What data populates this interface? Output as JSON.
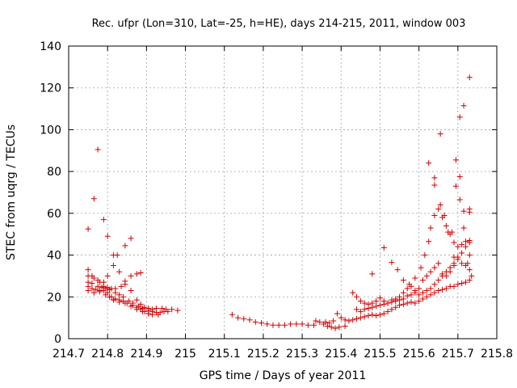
{
  "chart_data": {
    "type": "scatter",
    "title": "Rec. ufpr (Lon=310, Lat=-25, h=HE), days 214-215, 2011, window 003",
    "xlabel": "GPS time / Days of year 2011",
    "ylabel": "STEC from uqrg / TECUs",
    "xlim": [
      214.7,
      215.8
    ],
    "ylim": [
      0,
      140
    ],
    "x_ticks": [
      "214.7",
      "214.8",
      "214.9",
      "215",
      "215.1",
      "215.2",
      "215.3",
      "215.4",
      "215.5",
      "215.6",
      "215.7",
      "215.8"
    ],
    "y_ticks": [
      "0",
      "20",
      "40",
      "60",
      "80",
      "100",
      "120",
      "140"
    ],
    "grid": true,
    "marker": "plus",
    "color": "#d00000",
    "points": [
      [
        214.75,
        52.5
      ],
      [
        214.765,
        67
      ],
      [
        214.775,
        90.5
      ],
      [
        214.79,
        57
      ],
      [
        214.8,
        49
      ],
      [
        214.815,
        40
      ],
      [
        214.825,
        40
      ],
      [
        214.845,
        44.5
      ],
      [
        214.86,
        48
      ],
      [
        214.75,
        33
      ],
      [
        214.76,
        30
      ],
      [
        214.775,
        28
      ],
      [
        214.79,
        27
      ],
      [
        214.8,
        30
      ],
      [
        214.815,
        35
      ],
      [
        214.83,
        32
      ],
      [
        214.845,
        27.5
      ],
      [
        214.86,
        30
      ],
      [
        214.875,
        31
      ],
      [
        214.885,
        31.5
      ],
      [
        214.75,
        30
      ],
      [
        214.765,
        29
      ],
      [
        214.78,
        27
      ],
      [
        214.79,
        25
      ],
      [
        214.8,
        24.5
      ],
      [
        214.81,
        24
      ],
      [
        214.82,
        24
      ],
      [
        214.835,
        25
      ],
      [
        214.845,
        26
      ],
      [
        214.86,
        23
      ],
      [
        214.875,
        18.5
      ],
      [
        214.885,
        16.5
      ],
      [
        214.895,
        15
      ],
      [
        214.905,
        14.5
      ],
      [
        214.915,
        14
      ],
      [
        214.925,
        14.5
      ],
      [
        214.94,
        14.5
      ],
      [
        214.95,
        14
      ],
      [
        214.965,
        14
      ],
      [
        214.98,
        13.5
      ],
      [
        214.75,
        27
      ],
      [
        214.76,
        26.5
      ],
      [
        214.775,
        25
      ],
      [
        214.785,
        24.5
      ],
      [
        214.795,
        24
      ],
      [
        214.805,
        23.5
      ],
      [
        214.82,
        22
      ],
      [
        214.83,
        21
      ],
      [
        214.84,
        20
      ],
      [
        214.855,
        18
      ],
      [
        214.865,
        17
      ],
      [
        214.88,
        15.5
      ],
      [
        214.89,
        14.5
      ],
      [
        214.905,
        13.5
      ],
      [
        214.915,
        13
      ],
      [
        214.925,
        12.5
      ],
      [
        214.935,
        12.5
      ],
      [
        214.945,
        13
      ],
      [
        214.955,
        13
      ],
      [
        214.75,
        25
      ],
      [
        214.76,
        24
      ],
      [
        214.77,
        23.5
      ],
      [
        214.78,
        23
      ],
      [
        214.79,
        23
      ],
      [
        214.8,
        22
      ],
      [
        214.81,
        20
      ],
      [
        214.82,
        19
      ],
      [
        214.83,
        18.5
      ],
      [
        214.84,
        18
      ],
      [
        214.85,
        17
      ],
      [
        214.865,
        16
      ],
      [
        214.875,
        15
      ],
      [
        214.885,
        14
      ],
      [
        214.895,
        13
      ],
      [
        214.905,
        12
      ],
      [
        214.915,
        11.5
      ],
      [
        214.93,
        11.5
      ],
      [
        214.75,
        23
      ],
      [
        214.765,
        22
      ],
      [
        214.78,
        22.5
      ],
      [
        214.795,
        21
      ],
      [
        214.805,
        20
      ],
      [
        214.815,
        18.5
      ],
      [
        214.83,
        17.5
      ],
      [
        214.845,
        17
      ],
      [
        214.86,
        15.5
      ],
      [
        214.875,
        14
      ],
      [
        214.89,
        13
      ],
      [
        214.905,
        12
      ],
      [
        215.12,
        11.5
      ],
      [
        215.135,
        10
      ],
      [
        215.15,
        9.5
      ],
      [
        215.165,
        9
      ],
      [
        215.18,
        8
      ],
      [
        215.195,
        7.5
      ],
      [
        215.21,
        7
      ],
      [
        215.225,
        6.5
      ],
      [
        215.24,
        6.5
      ],
      [
        215.255,
        6.5
      ],
      [
        215.27,
        7
      ],
      [
        215.285,
        7
      ],
      [
        215.3,
        7
      ],
      [
        215.315,
        6.5
      ],
      [
        215.33,
        6.5
      ],
      [
        215.335,
        8.5
      ],
      [
        215.345,
        8
      ],
      [
        215.355,
        7
      ],
      [
        215.365,
        6
      ],
      [
        215.375,
        5.5
      ],
      [
        215.385,
        5
      ],
      [
        215.395,
        5.5
      ],
      [
        215.41,
        6
      ],
      [
        215.36,
        8
      ],
      [
        215.37,
        7.5
      ],
      [
        215.38,
        8.5
      ],
      [
        215.39,
        12
      ],
      [
        215.4,
        10
      ],
      [
        215.41,
        9
      ],
      [
        215.42,
        8.5
      ],
      [
        215.43,
        9
      ],
      [
        215.44,
        9.5
      ],
      [
        215.45,
        10
      ],
      [
        215.46,
        10.5
      ],
      [
        215.47,
        11
      ],
      [
        215.48,
        11.5
      ],
      [
        215.49,
        11
      ],
      [
        215.5,
        11.5
      ],
      [
        215.51,
        12
      ],
      [
        215.52,
        13
      ],
      [
        215.53,
        14
      ],
      [
        215.54,
        15
      ],
      [
        215.55,
        16
      ],
      [
        215.56,
        16.5
      ],
      [
        215.57,
        17
      ],
      [
        215.58,
        17.5
      ],
      [
        215.59,
        17
      ],
      [
        215.6,
        18
      ],
      [
        215.61,
        19
      ],
      [
        215.62,
        20
      ],
      [
        215.63,
        21
      ],
      [
        215.64,
        22
      ],
      [
        215.65,
        23
      ],
      [
        215.66,
        23.5
      ],
      [
        215.67,
        24
      ],
      [
        215.68,
        25
      ],
      [
        215.69,
        25
      ],
      [
        215.7,
        26
      ],
      [
        215.71,
        26.5
      ],
      [
        215.72,
        27
      ],
      [
        215.73,
        28
      ],
      [
        215.43,
        22
      ],
      [
        215.44,
        20
      ],
      [
        215.45,
        18
      ],
      [
        215.46,
        17
      ],
      [
        215.47,
        16.5
      ],
      [
        215.48,
        17
      ],
      [
        215.49,
        18
      ],
      [
        215.5,
        19.5
      ],
      [
        215.51,
        18
      ],
      [
        215.52,
        17
      ],
      [
        215.53,
        18.5
      ],
      [
        215.54,
        19
      ],
      [
        215.55,
        20
      ],
      [
        215.56,
        22
      ],
      [
        215.57,
        24
      ],
      [
        215.58,
        25
      ],
      [
        215.59,
        23
      ],
      [
        215.6,
        24
      ],
      [
        215.61,
        28
      ],
      [
        215.62,
        30
      ],
      [
        215.63,
        32
      ],
      [
        215.64,
        34
      ],
      [
        215.65,
        36
      ],
      [
        215.66,
        31
      ],
      [
        215.67,
        30
      ],
      [
        215.68,
        32
      ],
      [
        215.69,
        35
      ],
      [
        215.7,
        38
      ],
      [
        215.71,
        36
      ],
      [
        215.72,
        35
      ],
      [
        215.73,
        33
      ],
      [
        215.44,
        14
      ],
      [
        215.45,
        13
      ],
      [
        215.46,
        14
      ],
      [
        215.47,
        14.5
      ],
      [
        215.48,
        15
      ],
      [
        215.49,
        15.5
      ],
      [
        215.5,
        16
      ],
      [
        215.51,
        16.5
      ],
      [
        215.52,
        17
      ],
      [
        215.53,
        17.5
      ],
      [
        215.54,
        18
      ],
      [
        215.55,
        18.5
      ],
      [
        215.56,
        19
      ],
      [
        215.57,
        20.5
      ],
      [
        215.58,
        21
      ],
      [
        215.59,
        22
      ],
      [
        215.6,
        21
      ],
      [
        215.61,
        22
      ],
      [
        215.62,
        23
      ],
      [
        215.63,
        24
      ],
      [
        215.64,
        26
      ],
      [
        215.65,
        28
      ],
      [
        215.66,
        30
      ],
      [
        215.67,
        32
      ],
      [
        215.68,
        34
      ],
      [
        215.69,
        36
      ],
      [
        215.7,
        39
      ],
      [
        215.71,
        41
      ],
      [
        215.72,
        44
      ],
      [
        215.73,
        47
      ],
      [
        215.48,
        31
      ],
      [
        215.51,
        43.5
      ],
      [
        215.53,
        36.5
      ],
      [
        215.545,
        33
      ],
      [
        215.56,
        28
      ],
      [
        215.575,
        26
      ],
      [
        215.59,
        29
      ],
      [
        215.605,
        34
      ],
      [
        215.615,
        40
      ],
      [
        215.625,
        46.5
      ],
      [
        215.63,
        53
      ],
      [
        215.64,
        59
      ],
      [
        215.65,
        62
      ],
      [
        215.66,
        58
      ],
      [
        215.67,
        54
      ],
      [
        215.68,
        50
      ],
      [
        215.69,
        46
      ],
      [
        215.7,
        44
      ],
      [
        215.71,
        45
      ],
      [
        215.72,
        46.5
      ],
      [
        215.73,
        46
      ],
      [
        215.625,
        84
      ],
      [
        215.64,
        77
      ],
      [
        215.64,
        73.5
      ],
      [
        215.655,
        98
      ],
      [
        215.655,
        64
      ],
      [
        215.665,
        59
      ],
      [
        215.675,
        51
      ],
      [
        215.685,
        51
      ],
      [
        215.69,
        39
      ],
      [
        215.695,
        73
      ],
      [
        215.695,
        85.5
      ],
      [
        215.705,
        106
      ],
      [
        215.705,
        66.5
      ],
      [
        215.705,
        77.5
      ],
      [
        215.715,
        111.5
      ],
      [
        215.715,
        61
      ],
      [
        215.715,
        53
      ],
      [
        215.725,
        36
      ],
      [
        215.73,
        62
      ],
      [
        215.73,
        60.5
      ],
      [
        215.73,
        125
      ],
      [
        215.73,
        40
      ],
      [
        215.735,
        30
      ]
    ]
  }
}
